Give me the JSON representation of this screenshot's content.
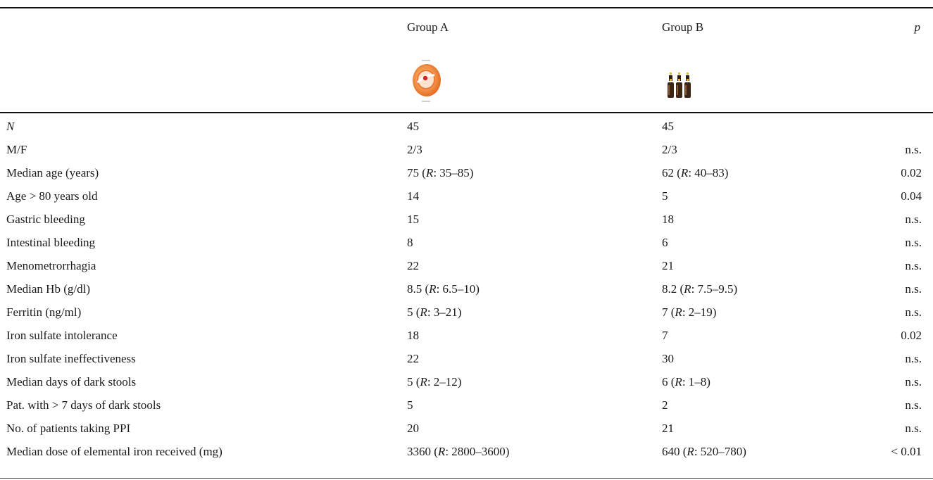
{
  "header": {
    "col_label": "",
    "group_a": "Group A",
    "group_b": "Group B",
    "p": "p"
  },
  "icons": {
    "group_a_icon": "orange-pill-capsule-icon",
    "group_b_icon": "three-brown-vials-icon"
  },
  "rows": [
    {
      "label": "N",
      "a": "45",
      "b": "45",
      "p": ""
    },
    {
      "label": "M/F",
      "a": "2/3",
      "b": "2/3",
      "p": "n.s."
    },
    {
      "label": "Median age (years)",
      "a_pre": "75 (",
      "a_r": "R",
      "a_post": ": 35–85)",
      "b_pre": "62 (",
      "b_r": "R",
      "b_post": ": 40–83)",
      "p": "0.02"
    },
    {
      "label": "Age > 80 years old",
      "a": "14",
      "b": "5",
      "p": "0.04"
    },
    {
      "label": "Gastric bleeding",
      "a": "15",
      "b": "18",
      "p": "n.s."
    },
    {
      "label": "Intestinal bleeding",
      "a": "8",
      "b": "6",
      "p": "n.s."
    },
    {
      "label": "Menometrorrhagia",
      "a": "22",
      "b": "21",
      "p": "n.s."
    },
    {
      "label": "Median Hb (g/dl)",
      "a_pre": "8.5 (",
      "a_r": "R",
      "a_post": ": 6.5–10)",
      "b_pre": "8.2 (",
      "b_r": "R",
      "b_post": ": 7.5–9.5)",
      "p": "n.s."
    },
    {
      "label": "Ferritin (ng/ml)",
      "a_pre": "5 (",
      "a_r": "R",
      "a_post": ": 3–21)",
      "b_pre": "7 (",
      "b_r": "R",
      "b_post": ": 2–19)",
      "p": "n.s."
    },
    {
      "label": "Iron sulfate intolerance",
      "a": "18",
      "b": "7",
      "p": "0.02"
    },
    {
      "label": "Iron sulfate ineffectiveness",
      "a": "22",
      "b": "30",
      "p": "n.s."
    },
    {
      "label": "Median days of dark stools",
      "a_pre": "5 (",
      "a_r": "R",
      "a_post": ": 2–12)",
      "b_pre": "6 (",
      "b_r": "R",
      "b_post": ": 1–8)",
      "p": "n.s."
    },
    {
      "label": "Pat. with > 7 days of dark stools",
      "a": "5",
      "b": "2",
      "p": "n.s."
    },
    {
      "label": "No. of patients taking PPI",
      "a": "20",
      "b": "21",
      "p": "n.s."
    },
    {
      "label": "Median dose of elemental iron received (mg)",
      "a_pre": "3360 (",
      "a_r": "R",
      "a_post": ": 2800–3600)",
      "b_pre": "640 (",
      "b_r": "R",
      "b_post": ": 520–780)",
      "p": "< 0.01"
    }
  ]
}
